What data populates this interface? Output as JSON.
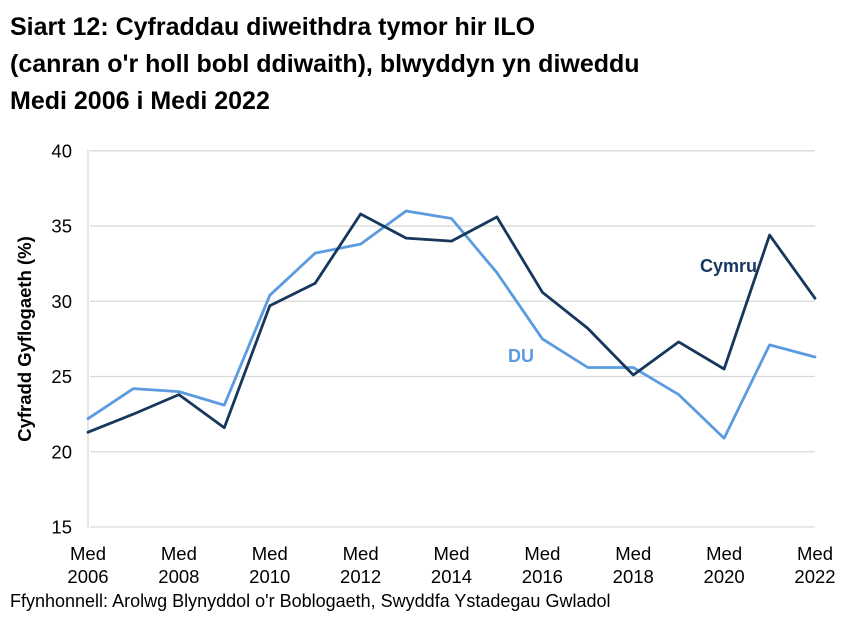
{
  "page": {
    "title_lines": [
      "Siart 12: Cyfraddau diweithdra tymor hir ILO",
      "(canran o'r holl bobl ddiwaith), blwyddyn yn diweddu",
      "Medi 2006 i Medi 2022"
    ],
    "source": "Ffynhonnell: Arolwg Blynyddol o'r Boblogaeth, Swyddfa Ystadegau Gwladol"
  },
  "chart_data": {
    "type": "line",
    "title": "Siart 12: Cyfraddau diweithdra tymor hir ILO (canran o'r holl bobl ddiwaith), blwyddyn yn diweddu Medi 2006 i Medi 2022",
    "xlabel": "",
    "ylabel": "Cyfradd Gyflogaeth (%)",
    "ylim": [
      15,
      40
    ],
    "y_ticks": [
      15,
      20,
      25,
      30,
      35,
      40
    ],
    "x_years": [
      2006,
      2007,
      2008,
      2009,
      2010,
      2011,
      2012,
      2013,
      2014,
      2015,
      2016,
      2017,
      2018,
      2019,
      2020,
      2021,
      2022
    ],
    "x_tick_labels": [
      "Med 2006",
      "Med 2008",
      "Med 2010",
      "Med 2012",
      "Med 2014",
      "Med 2016",
      "Med 2018",
      "Med 2020",
      "Med 2022"
    ],
    "grid": "horizontal",
    "legend": "inline-labels",
    "series": [
      {
        "name": "Cymru",
        "color": "#17375D",
        "values": [
          21.3,
          22.5,
          23.8,
          21.6,
          29.7,
          31.2,
          35.8,
          34.2,
          34.0,
          35.6,
          30.6,
          28.2,
          25.1,
          27.3,
          25.5,
          34.4,
          30.2
        ]
      },
      {
        "name": "DU",
        "color": "#5B9BE0",
        "values": [
          22.2,
          24.2,
          24.0,
          23.1,
          30.4,
          33.2,
          33.8,
          36.0,
          35.5,
          31.9,
          27.5,
          25.6,
          25.6,
          23.8,
          20.9,
          27.1,
          26.3
        ]
      }
    ],
    "colors": {
      "gridline": "#D9D9D9",
      "axis_text": "#000000"
    }
  }
}
